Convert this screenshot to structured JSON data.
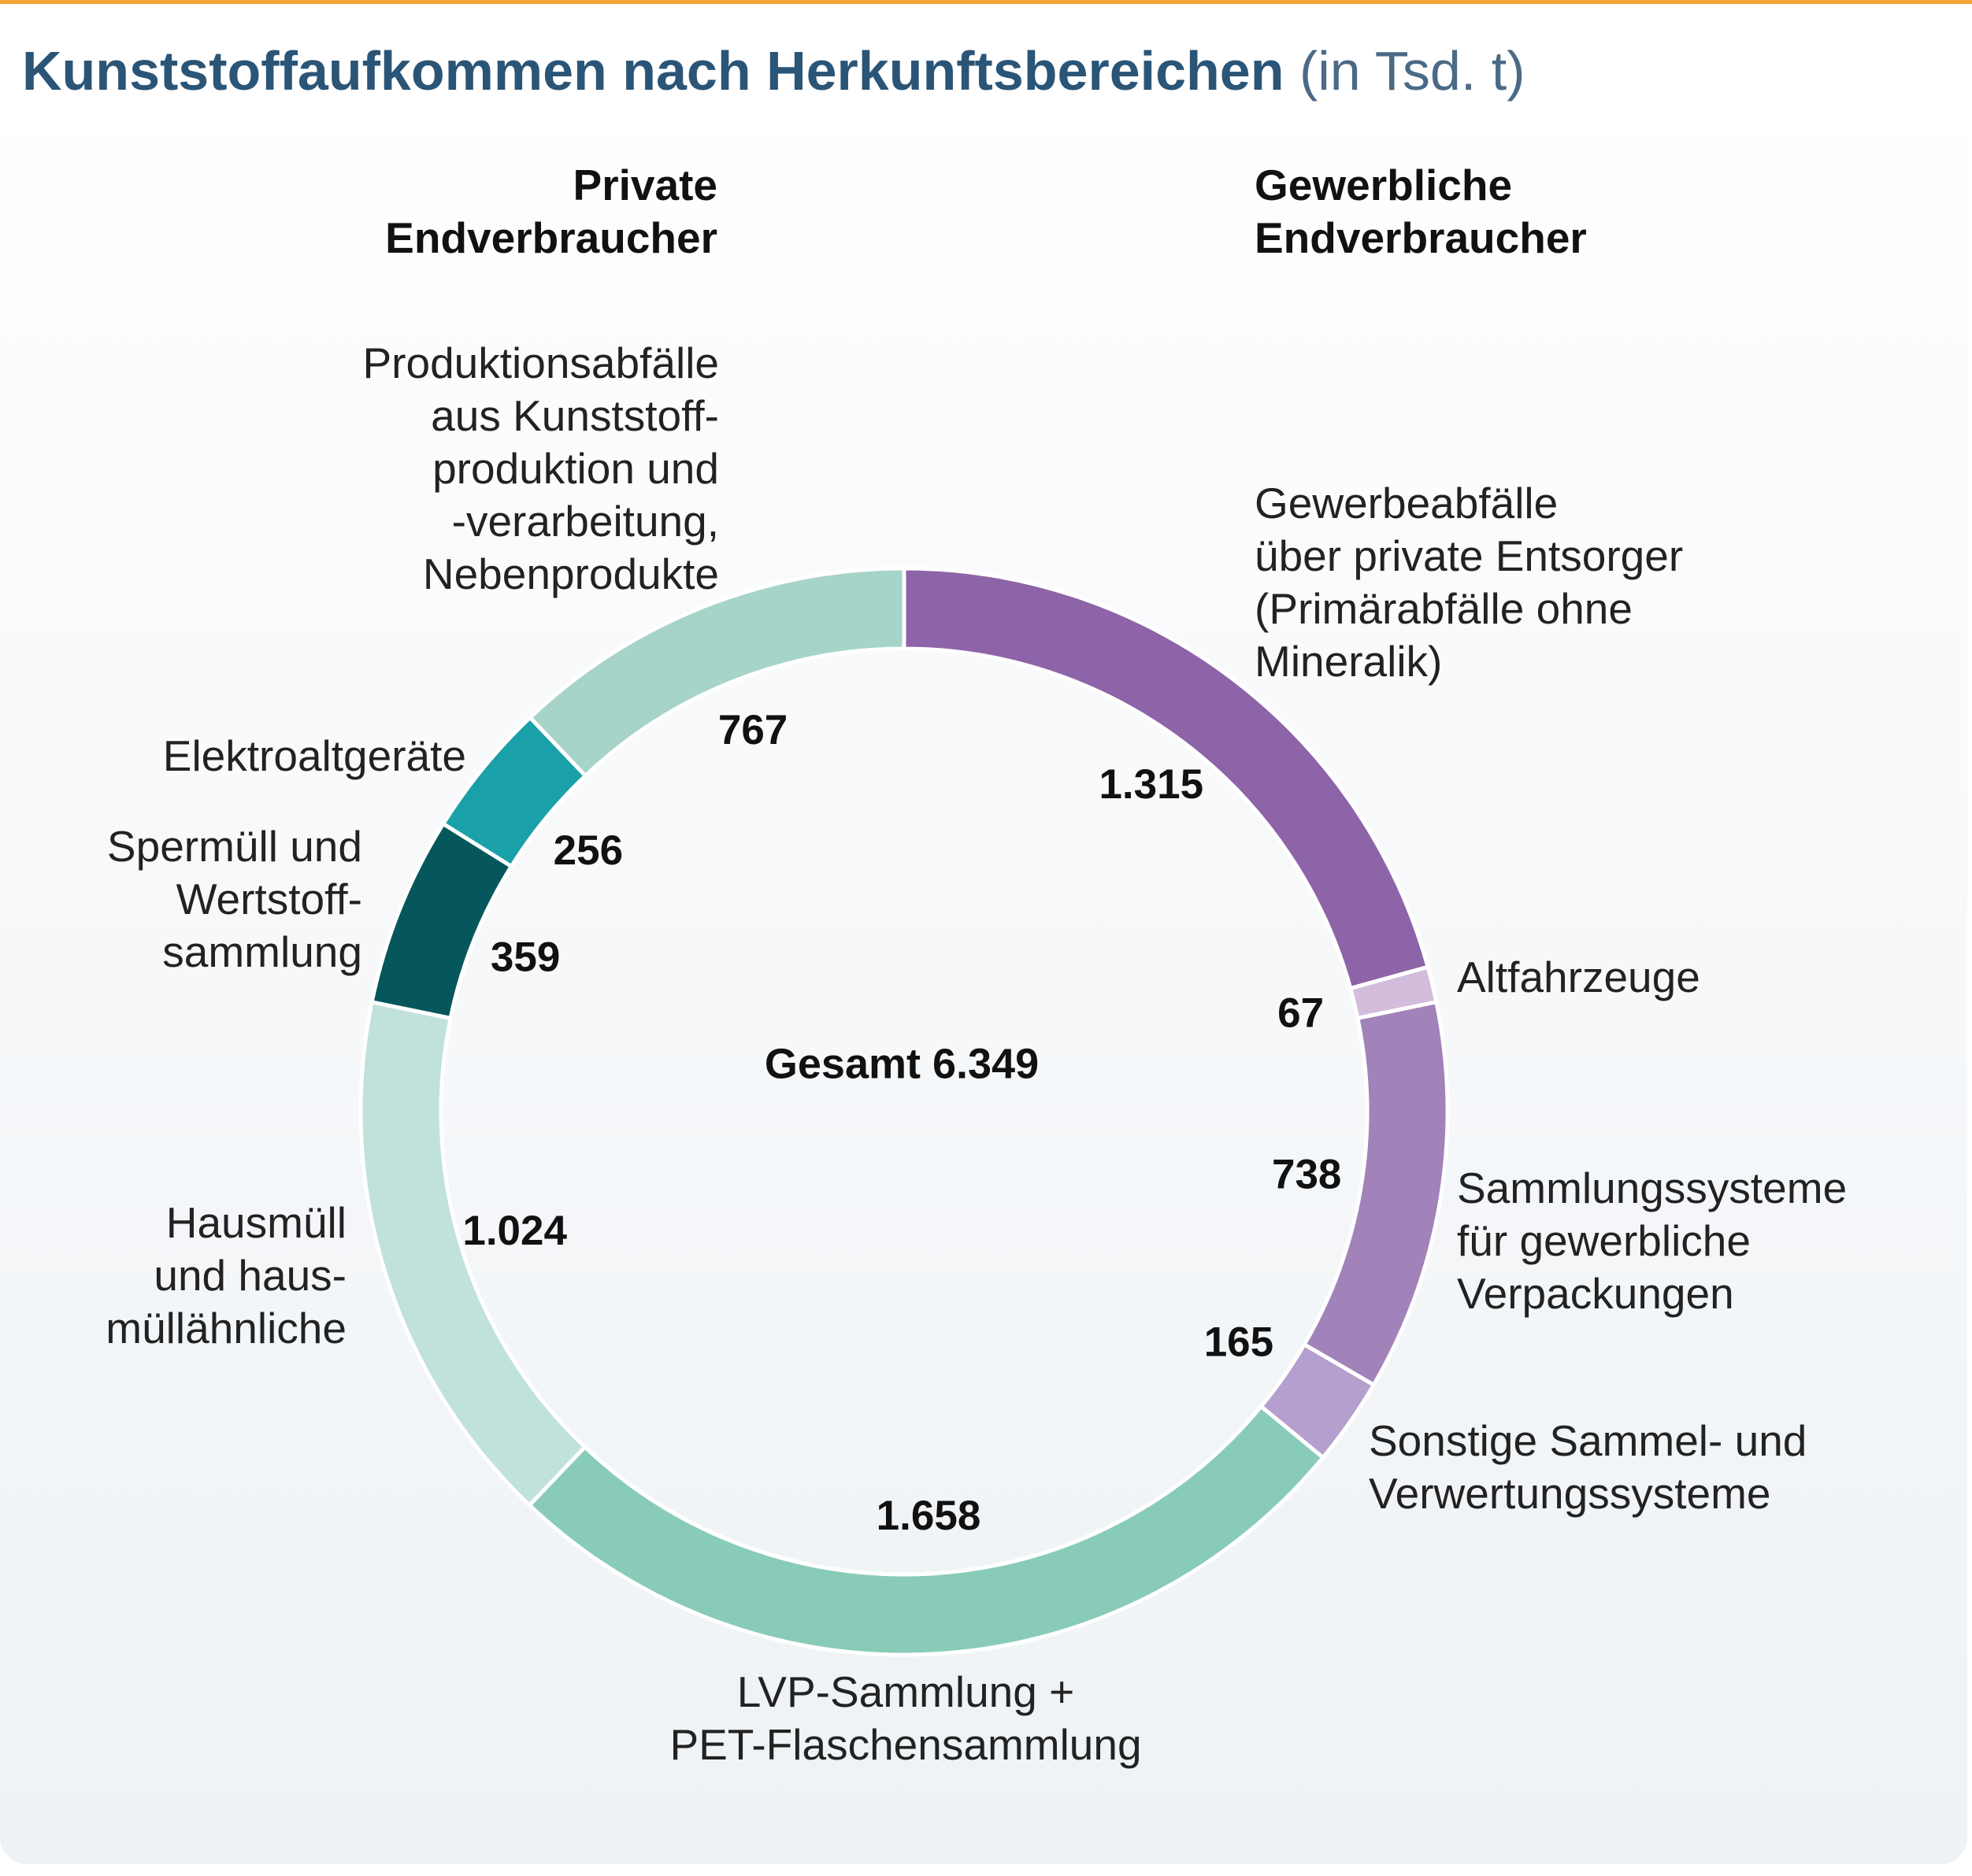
{
  "title": "Kunststoffaufkommen nach Herkunftsbereichen",
  "title_unit": "(in Tsd. t)",
  "group_private": "Private\nEndverbraucher",
  "group_commercial": "Gewerbliche\nEndverbraucher",
  "chart_data": {
    "type": "pie",
    "variant": "donut",
    "title": "Kunststoffaufkommen nach Herkunftsbereichen (in Tsd. t)",
    "unit": "Tsd. t",
    "total_label": "Gesamt 6.349",
    "total": 6349,
    "start_angle_deg": 0,
    "direction": "clockwise",
    "slices": [
      {
        "key": "gewerbeabfaelle",
        "label": "Gewerbeabfälle\nüber private Entsorger\n(Primärabfälle ohne\nMineralik)",
        "value": 1315,
        "value_label": "1.315",
        "color": "#8d64a8",
        "group": "Gewerbliche Endverbraucher"
      },
      {
        "key": "altfahrzeuge",
        "label": "Altfahrzeuge",
        "value": 67,
        "value_label": "67",
        "color": "#d3bcdc",
        "group": "Gewerbliche Endverbraucher"
      },
      {
        "key": "sammlungssysteme",
        "label": "Sammlungssysteme\nfür gewerbliche\nVerpackungen",
        "value": 738,
        "value_label": "738",
        "color": "#a182b9",
        "group": "Gewerbliche Endverbraucher"
      },
      {
        "key": "sonstige",
        "label": "Sonstige Sammel- und\nVerwertungssysteme",
        "value": 165,
        "value_label": "165",
        "color": "#b59fce",
        "group": "Gewerbliche Endverbraucher"
      },
      {
        "key": "lvp",
        "label": "LVP-Sammlung +\nPET-Flaschensammlung",
        "value": 1658,
        "value_label": "1.658",
        "color": "#88cbb8",
        "group": "Private Endverbraucher"
      },
      {
        "key": "hausmuell",
        "label": "Hausmüll\nund haus-\nmüllähnliche",
        "value": 1024,
        "value_label": "1.024",
        "color": "#c0e2da",
        "group": "Private Endverbraucher"
      },
      {
        "key": "sperrmuell",
        "label": "Spermüll und\nWertstoff-\nsammlung",
        "value": 359,
        "value_label": "359",
        "color": "#05575c",
        "group": "Private Endverbraucher"
      },
      {
        "key": "elektro",
        "label": "Elektroaltgeräte",
        "value": 256,
        "value_label": "256",
        "color": "#1aa0a8",
        "group": "Private Endverbraucher"
      },
      {
        "key": "produktion",
        "label": "Produktionsabfälle\naus Kunststoff-\nproduktion und\n-verarbeitung,\nNebenprodukte",
        "value": 767,
        "value_label": "767",
        "color": "#a6d4c9",
        "group": "Private Endverbraucher"
      }
    ]
  }
}
